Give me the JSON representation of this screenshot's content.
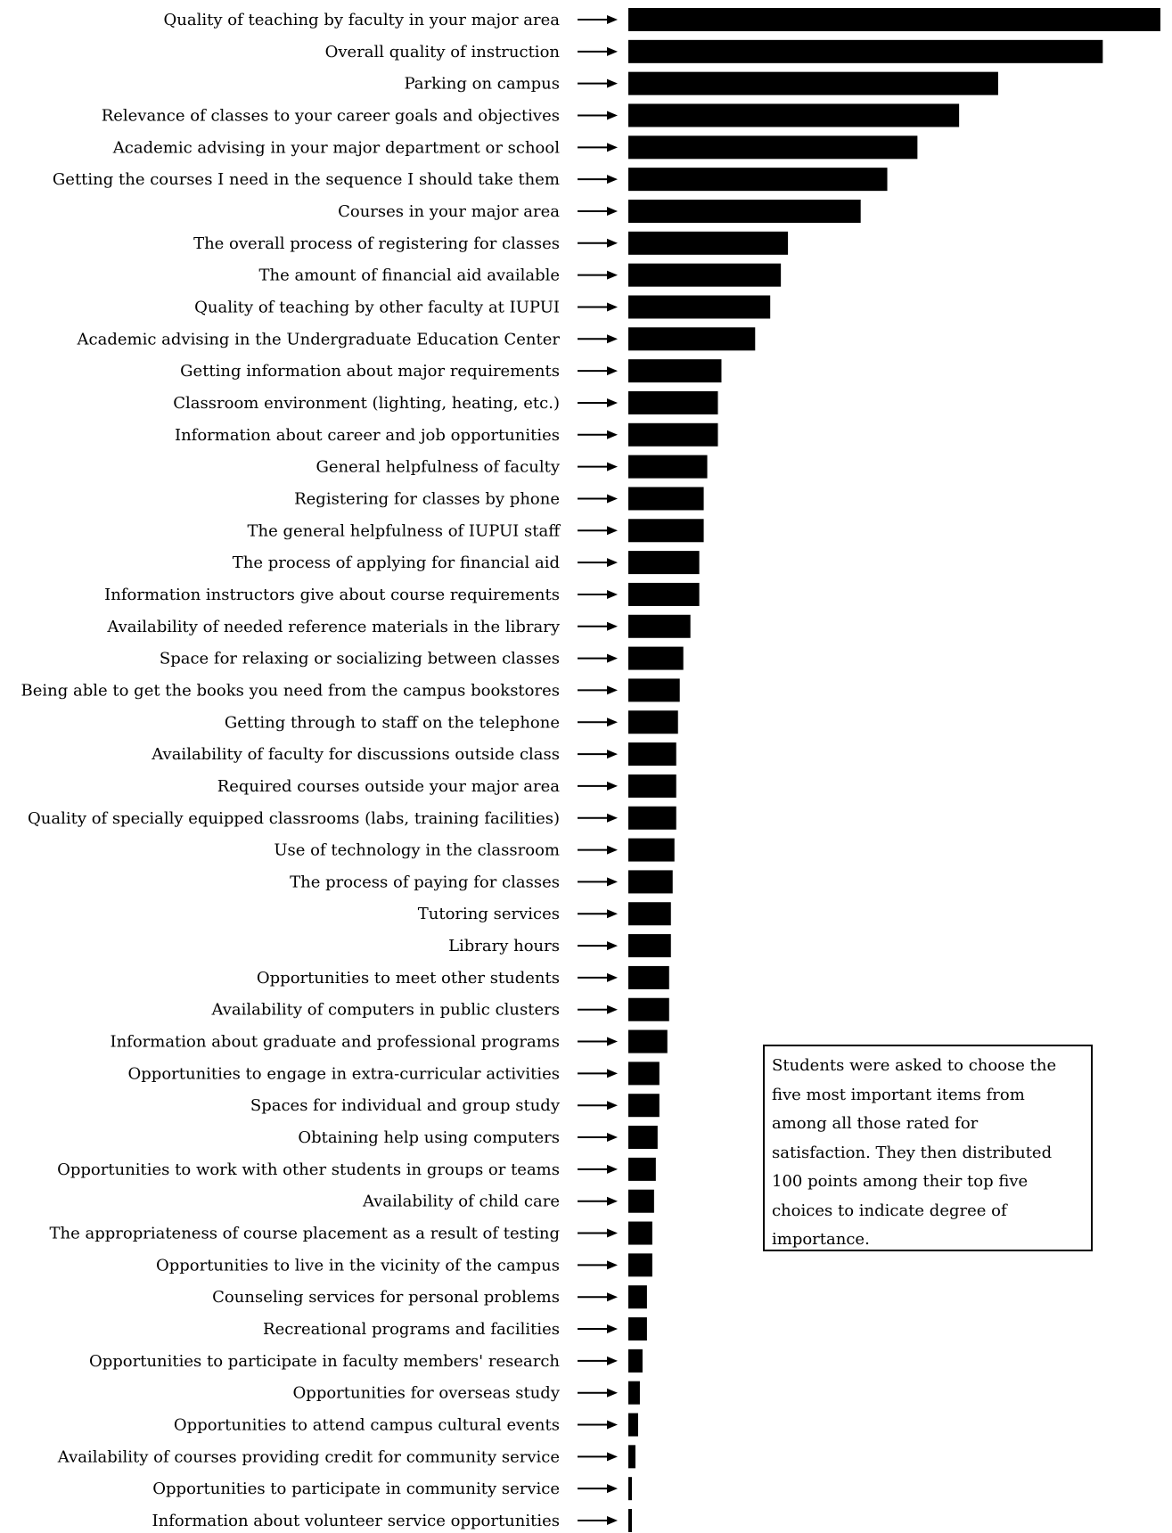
{
  "chart_data": {
    "type": "bar",
    "orientation": "horizontal",
    "bar_color": "#000000",
    "arrow_color": "#000000",
    "categories": [
      "Quality of teaching by faculty in your major area",
      "Overall quality of instruction",
      "Parking on campus",
      "Relevance of classes to your  career goals and objectives",
      "Academic advising in your major department or school",
      "Getting the courses I need in the sequence I should take them",
      "Courses in your major area",
      "The overall process of registering for classes",
      "The amount of financial aid available",
      "Quality of teaching by other faculty at IUPUI",
      "Academic advising in the Undergraduate Education Center",
      "Getting information about major requirements",
      "Classroom environment (lighting, heating, etc.)",
      "Information about career and job opportunities",
      "General helpfulness of faculty",
      "Registering for classes by phone",
      "The general helpfulness of IUPUI staff",
      "The process of applying for financial aid",
      "Information instructors give about course requirements",
      "Availability of needed reference materials in the library",
      "Space for relaxing or socializing between classes",
      "Being able to get the books you need from the campus bookstores",
      "Getting through to staff on the telephone",
      "Availability of faculty for discussions outside class",
      "Required courses outside your major area",
      "Quality of specially equipped classrooms (labs, training facilities)",
      "Use of technology in the classroom",
      "The process of paying for classes",
      "Tutoring services",
      "Library hours",
      "Opportunities to meet other students",
      "Availability of computers in public clusters",
      "Information about graduate and professional programs",
      "Opportunities to engage in extra-curricular activities",
      "Spaces for individual and group study",
      "Obtaining help using computers",
      "Opportunities to work with other students in groups or teams",
      "Availability of child care",
      "The appropriateness of course placement as a result of testing",
      "Opportunities to live in the vicinity of the campus",
      "Counseling services for personal problems",
      "Recreational programs and facilities",
      "Opportunities to participate in faculty members' research",
      "Opportunities for overseas study",
      "Opportunities to attend campus cultural events",
      "Availability of courses providing credit for community service",
      "Opportunities to participate in community service",
      "Information about volunteer service opportunities"
    ],
    "values": [
      600,
      535,
      417,
      373,
      326,
      292,
      262,
      180,
      172,
      160,
      143,
      105,
      101,
      101,
      89,
      85,
      85,
      80,
      80,
      70,
      62,
      58,
      56,
      54,
      54,
      54,
      52,
      50,
      48,
      48,
      46,
      46,
      44,
      35,
      35,
      33,
      31,
      29,
      27,
      27,
      21,
      21,
      16,
      13,
      11,
      8,
      4,
      4
    ],
    "xlim": [
      0,
      600
    ],
    "grid": false,
    "legend": "none",
    "annotation": [
      "Students were asked to choose the",
      "five most important items from",
      "among all those rated for",
      "satisfaction.  They then distributed",
      "100 points among their top five",
      "choices to indicate degree of",
      "importance."
    ]
  }
}
